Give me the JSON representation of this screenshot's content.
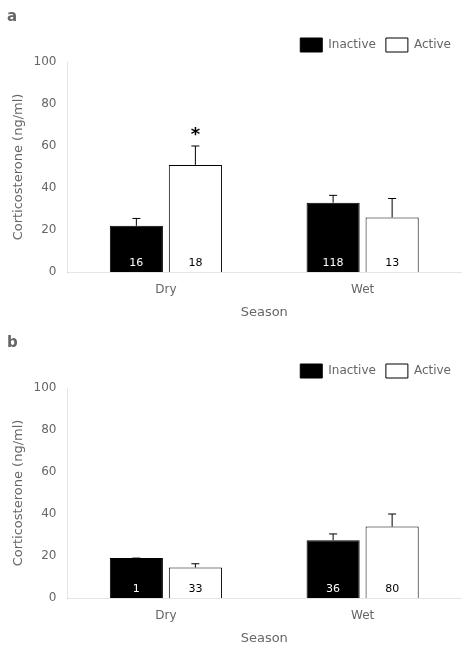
{
  "chart_data": [
    {
      "type": "bar",
      "title": "a",
      "categories": [
        "Dry",
        "Wet"
      ],
      "series": [
        {
          "name": "Inactive",
          "color": "#000000",
          "values": [
            22,
            33
          ],
          "errors": [
            3.5,
            3.5
          ],
          "n_labels": [
            "16",
            "118"
          ]
        },
        {
          "name": "Active",
          "color": "#ffffff",
          "values": [
            51,
            26
          ],
          "errors": [
            9,
            9
          ],
          "n_labels": [
            "18",
            "13"
          ]
        }
      ],
      "annotations": [
        {
          "text": "*",
          "category": "Dry",
          "series": "Active"
        }
      ],
      "xlabel": "Season",
      "ylabel": "Corticosterone (ng/ml)",
      "ylim": [
        0,
        100
      ],
      "yticks": [
        0,
        20,
        40,
        60,
        80,
        100
      ],
      "grid": false,
      "legend": "upper right"
    },
    {
      "type": "bar",
      "title": "b",
      "categories": [
        "Dry",
        "Wet"
      ],
      "series": [
        {
          "name": "Inactive",
          "color": "#000000",
          "values": [
            19,
            27.5
          ],
          "errors": [
            0,
            3.0
          ],
          "n_labels": [
            "1",
            "36"
          ]
        },
        {
          "name": "Active",
          "color": "#ffffff",
          "values": [
            14.5,
            34
          ],
          "errors": [
            1.8,
            6.0
          ],
          "n_labels": [
            "33",
            "80"
          ]
        }
      ],
      "xlabel": "Season",
      "ylabel": "Corticosterone (ng/ml)",
      "ylim": [
        0,
        100
      ],
      "yticks": [
        0,
        20,
        40,
        60,
        80,
        100
      ],
      "grid": false,
      "legend": "upper right"
    }
  ]
}
